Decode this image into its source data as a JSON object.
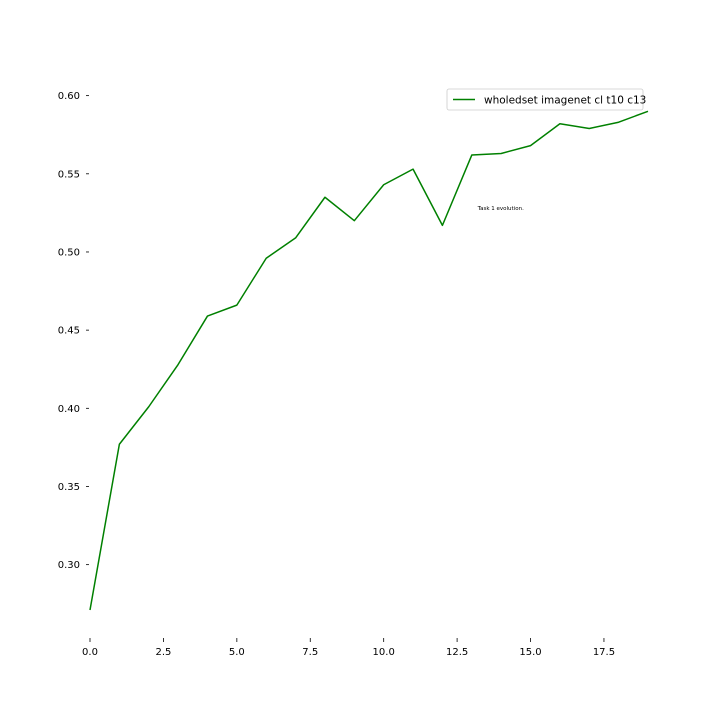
{
  "chart_data": {
    "type": "line",
    "x": [
      0,
      1,
      2,
      3,
      4,
      5,
      6,
      7,
      8,
      9,
      10,
      11,
      12,
      13,
      14,
      15,
      16,
      17,
      18,
      19
    ],
    "series": [
      {
        "name": "wholedset imagenet cl t10 c13",
        "color": "#008000",
        "values": [
          0.271,
          0.377,
          0.401,
          0.428,
          0.459,
          0.466,
          0.496,
          0.509,
          0.535,
          0.52,
          0.543,
          0.553,
          0.517,
          0.562,
          0.563,
          0.568,
          0.582,
          0.579,
          0.583,
          0.59
        ]
      }
    ],
    "xlim": [
      0,
      19
    ],
    "ylim": [
      0.255,
      0.61
    ],
    "x_ticks": [
      "0.0",
      "2.5",
      "5.0",
      "7.5",
      "10.0",
      "12.5",
      "15.0",
      "17.5"
    ],
    "x_tick_values": [
      0,
      2.5,
      5,
      7.5,
      10,
      12.5,
      15,
      17.5
    ],
    "y_ticks": [
      "0.30",
      "0.35",
      "0.40",
      "0.45",
      "0.50",
      "0.55",
      "0.60"
    ],
    "y_tick_values": [
      0.3,
      0.35,
      0.4,
      0.45,
      0.5,
      0.55,
      0.6
    ],
    "legend_position": "top-right",
    "grid": false,
    "annotation": {
      "text": "Task 1 evolution.",
      "x": 13.2,
      "y": 0.527
    }
  }
}
